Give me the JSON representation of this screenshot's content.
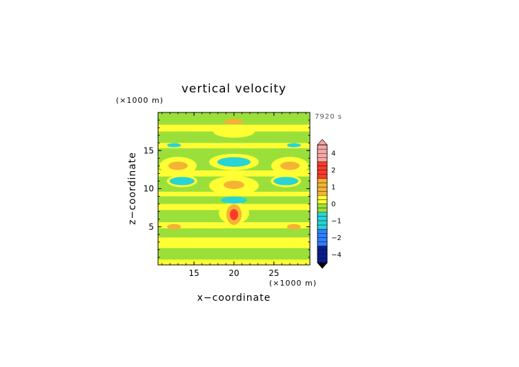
{
  "chart_data": {
    "type": "heatmap",
    "title": "vertical velocity",
    "time_label": "7920 s",
    "xlabel": "x−coordinate",
    "ylabel": "z−coordinate",
    "x_unit": "(×1000 m)",
    "y_unit": "(×1000 m)",
    "xlim": [
      10.5,
      29.5
    ],
    "ylim": [
      0,
      20
    ],
    "xticks": [
      "15",
      "20",
      "25"
    ],
    "yticks": [
      "5",
      "10",
      "15"
    ],
    "colorbar": {
      "levels": [
        -5,
        -4.5,
        -4,
        -3.5,
        -3,
        -2.5,
        -2,
        -1.75,
        -1.5,
        -1.25,
        -1,
        -0.75,
        -0.5,
        -0.25,
        0,
        0.25,
        0.5,
        0.75,
        1,
        1.25,
        1.5,
        1.75,
        2,
        2.5,
        3,
        3.5,
        4,
        4.5,
        5
      ],
      "labels": [
        "4",
        "2",
        "1",
        "0",
        "−1",
        "−2",
        "−4"
      ],
      "colors": {
        "strong_negative": "#0a1f8c",
        "negative": "#2f7fff",
        "weak_negative": "#29d4d4",
        "near_zero_negative": "#9be03a",
        "near_zero_positive": "#ffff33",
        "weak_positive": "#f5b335",
        "positive": "#ff3a2a",
        "strong_positive": "#f7a6a6"
      }
    },
    "features": [
      {
        "kind": "updraft",
        "x": 20,
        "z": 6.5,
        "w": 1.5
      },
      {
        "kind": "updraft",
        "x": 20,
        "z": 10.5,
        "w": 0.7
      },
      {
        "kind": "updraft",
        "x": 13,
        "z": 13,
        "w": 0.5
      },
      {
        "kind": "updraft",
        "x": 27,
        "z": 13,
        "w": 0.5
      },
      {
        "kind": "updraft",
        "x": 20,
        "z": 18.8,
        "w": 0.4
      },
      {
        "kind": "downdraft",
        "x": 20,
        "z": 8.5,
        "w": -0.7
      },
      {
        "kind": "downdraft",
        "x": 20,
        "z": 13.5,
        "w": -0.6
      },
      {
        "kind": "downdraft",
        "x": 13.5,
        "z": 11,
        "w": -0.6
      },
      {
        "kind": "downdraft",
        "x": 26.5,
        "z": 11,
        "w": -0.6
      }
    ]
  }
}
